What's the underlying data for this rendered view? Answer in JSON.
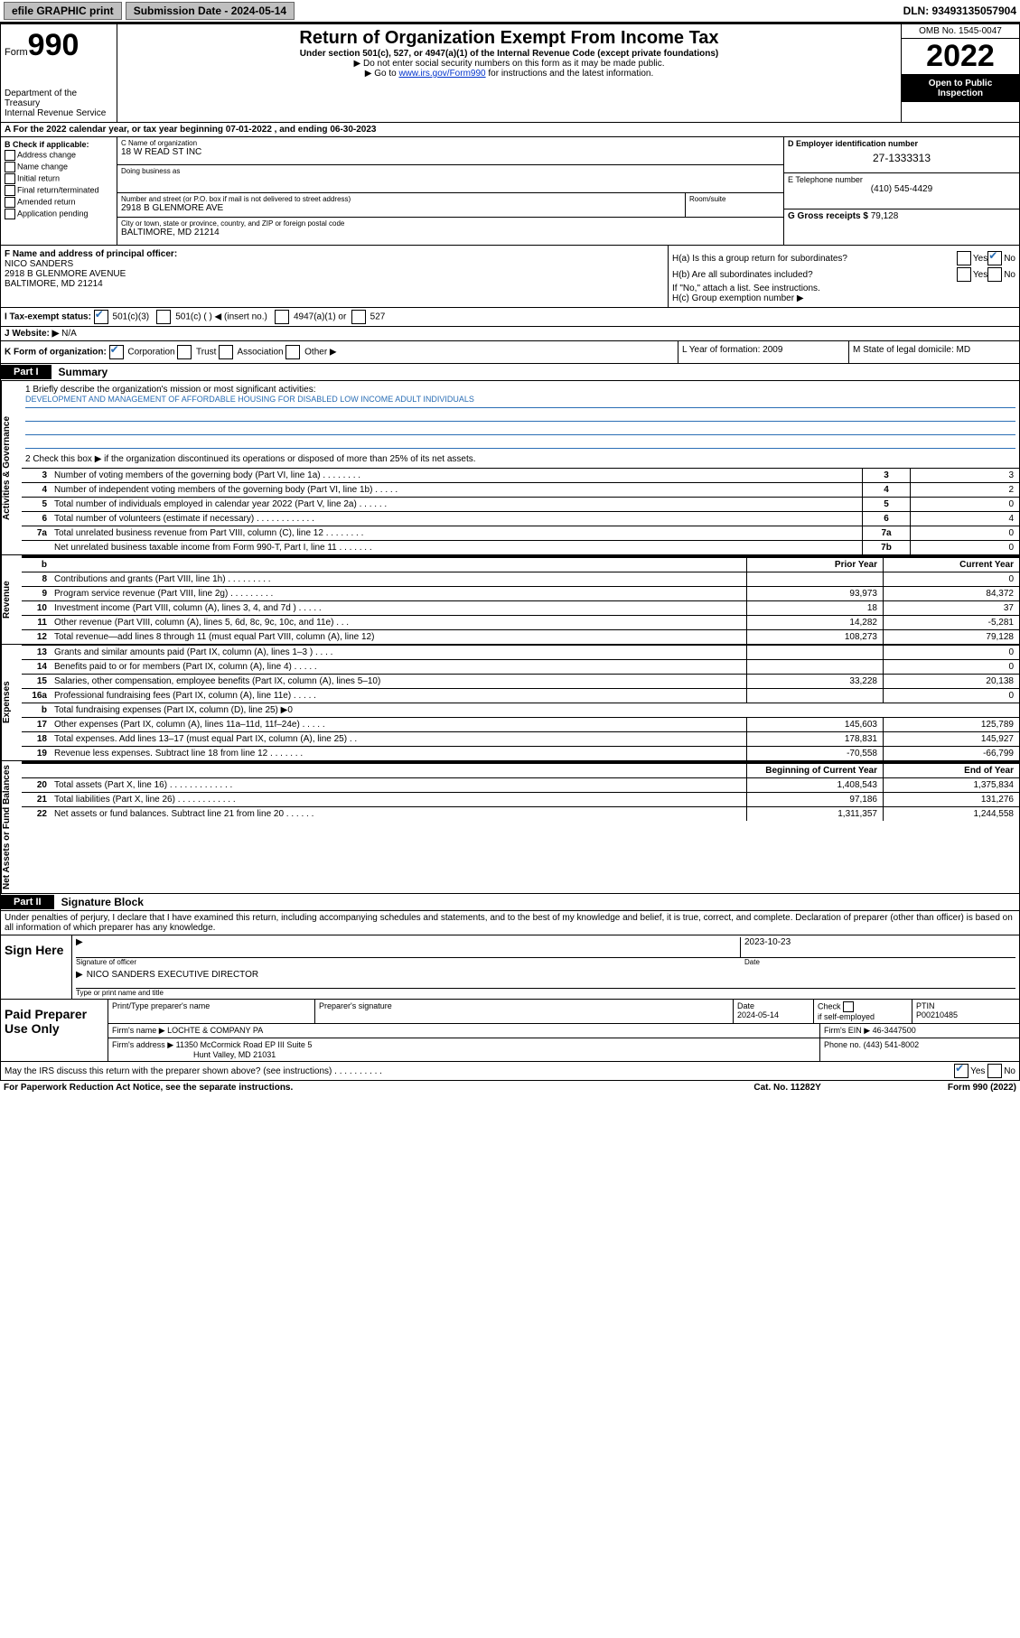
{
  "topbar": {
    "efile": "efile GRAPHIC print",
    "sub_label": "Submission Date - 2024-05-14",
    "dln": "DLN: 93493135057904"
  },
  "header": {
    "form_word": "Form",
    "form_num": "990",
    "dept": "Department of the Treasury",
    "irs": "Internal Revenue Service",
    "title": "Return of Organization Exempt From Income Tax",
    "subtitle": "Under section 501(c), 527, or 4947(a)(1) of the Internal Revenue Code (except private foundations)",
    "line1": "▶ Do not enter social security numbers on this form as it may be made public.",
    "line2a": "▶ Go to ",
    "line2_link": "www.irs.gov/Form990",
    "line2b": " for instructions and the latest information.",
    "omb": "OMB No. 1545-0047",
    "year": "2022",
    "inspect": "Open to Public Inspection"
  },
  "rowA": "A For the 2022 calendar year, or tax year beginning 07-01-2022   , and ending 06-30-2023",
  "colB": {
    "hdr": "B Check if applicable:",
    "opts": [
      "Address change",
      "Name change",
      "Initial return",
      "Final return/terminated",
      "Amended return",
      "Application pending"
    ]
  },
  "colC": {
    "name_lbl": "C Name of organization",
    "name": "18 W READ ST INC",
    "dba_lbl": "Doing business as",
    "street_lbl": "Number and street (or P.O. box if mail is not delivered to street address)",
    "room_lbl": "Room/suite",
    "street": "2918 B GLENMORE AVE",
    "city_lbl": "City or town, state or province, country, and ZIP or foreign postal code",
    "city": "BALTIMORE, MD  21214"
  },
  "colD": {
    "ein_lbl": "D Employer identification number",
    "ein": "27-1333313",
    "tel_lbl": "E Telephone number",
    "tel": "(410) 545-4429",
    "gross_lbl": "G Gross receipts $ ",
    "gross": "79,128"
  },
  "F": {
    "lbl": "F Name and address of principal officer:",
    "name": "NICO SANDERS",
    "addr1": "2918 B GLENMORE AVENUE",
    "addr2": "BALTIMORE, MD  21214"
  },
  "H": {
    "a": "H(a)  Is this a group return for subordinates?",
    "b": "H(b)  Are all subordinates included?",
    "attach": "If \"No,\" attach a list. See instructions.",
    "c": "H(c)  Group exemption number ▶",
    "yes": "Yes",
    "no": "No"
  },
  "I": {
    "lbl": "I   Tax-exempt status:",
    "c3": "501(c)(3)",
    "cx": "501(c) (   ) ◀ (insert no.)",
    "a1": "4947(a)(1) or",
    "s527": "527"
  },
  "J": {
    "lbl": "J   Website: ▶",
    "val": "N/A"
  },
  "K": {
    "lbl": "K Form of organization:",
    "corp": "Corporation",
    "trust": "Trust",
    "assoc": "Association",
    "other": "Other ▶",
    "L": "L Year of formation: 2009",
    "M": "M State of legal domicile: MD"
  },
  "part1": {
    "tag": "Part I",
    "title": "Summary"
  },
  "mission": {
    "q1": "1  Briefly describe the organization's mission or most significant activities:",
    "txt": "DEVELOPMENT AND MANAGEMENT OF AFFORDABLE HOUSING FOR DISABLED LOW INCOME ADULT INDIVIDUALS",
    "q2": "2   Check this box ▶        if the organization discontinued its operations or disposed of more than 25% of its net assets."
  },
  "gov_lines": [
    {
      "n": "3",
      "d": "Number of voting members of the governing body (Part VI, line 1a)   .    .    .    .    .    .    .    .",
      "b": "3",
      "v": "3"
    },
    {
      "n": "4",
      "d": "Number of independent voting members of the governing body (Part VI, line 1b)   .    .    .    .    .",
      "b": "4",
      "v": "2"
    },
    {
      "n": "5",
      "d": "Total number of individuals employed in calendar year 2022 (Part V, line 2a)   .    .    .    .    .    .",
      "b": "5",
      "v": "0"
    },
    {
      "n": "6",
      "d": "Total number of volunteers (estimate if necessary)   .    .    .    .    .    .    .    .    .    .    .    .",
      "b": "6",
      "v": "4"
    },
    {
      "n": "7a",
      "d": "Total unrelated business revenue from Part VIII, column (C), line 12   .    .    .    .    .    .    .    .",
      "b": "7a",
      "v": "0"
    },
    {
      "n": "",
      "d": "Net unrelated business taxable income from Form 990-T, Part I, line 11   .    .    .    .    .    .    .",
      "b": "7b",
      "v": "0"
    }
  ],
  "rev_head": {
    "n": "b",
    "py": "Prior Year",
    "cy": "Current Year"
  },
  "rev_lines": [
    {
      "n": "8",
      "d": "Contributions and grants (Part VIII, line 1h)   .    .    .    .    .    .    .    .    .",
      "p": "",
      "c": "0"
    },
    {
      "n": "9",
      "d": "Program service revenue (Part VIII, line 2g)   .    .    .    .    .    .    .    .    .",
      "p": "93,973",
      "c": "84,372"
    },
    {
      "n": "10",
      "d": "Investment income (Part VIII, column (A), lines 3, 4, and 7d )   .    .    .    .    .",
      "p": "18",
      "c": "37"
    },
    {
      "n": "11",
      "d": "Other revenue (Part VIII, column (A), lines 5, 6d, 8c, 9c, 10c, and 11e)   .    .    .",
      "p": "14,282",
      "c": "-5,281"
    },
    {
      "n": "12",
      "d": "Total revenue—add lines 8 through 11 (must equal Part VIII, column (A), line 12)",
      "p": "108,273",
      "c": "79,128"
    }
  ],
  "exp_lines": [
    {
      "n": "13",
      "d": "Grants and similar amounts paid (Part IX, column (A), lines 1–3 )   .    .    .    .",
      "p": "",
      "c": "0"
    },
    {
      "n": "14",
      "d": "Benefits paid to or for members (Part IX, column (A), line 4)   .    .    .    .    .",
      "p": "",
      "c": "0"
    },
    {
      "n": "15",
      "d": "Salaries, other compensation, employee benefits (Part IX, column (A), lines 5–10)",
      "p": "33,228",
      "c": "20,138"
    },
    {
      "n": "16a",
      "d": "Professional fundraising fees (Part IX, column (A), line 11e)   .    .    .    .    .",
      "p": "",
      "c": "0"
    },
    {
      "n": "b",
      "d": "Total fundraising expenses (Part IX, column (D), line 25) ▶0",
      "p": "§",
      "c": "§"
    },
    {
      "n": "17",
      "d": "Other expenses (Part IX, column (A), lines 11a–11d, 11f–24e)   .    .    .    .    .",
      "p": "145,603",
      "c": "125,789"
    },
    {
      "n": "18",
      "d": "Total expenses. Add lines 13–17 (must equal Part IX, column (A), line 25)   .    .",
      "p": "178,831",
      "c": "145,927"
    },
    {
      "n": "19",
      "d": "Revenue less expenses. Subtract line 18 from line 12   .    .    .    .    .    .    .",
      "p": "-70,558",
      "c": "-66,799"
    }
  ],
  "na_head": {
    "py": "Beginning of Current Year",
    "cy": "End of Year"
  },
  "na_lines": [
    {
      "n": "20",
      "d": "Total assets (Part X, line 16)   .    .    .    .    .    .    .    .    .    .    .    .    .",
      "p": "1,408,543",
      "c": "1,375,834"
    },
    {
      "n": "21",
      "d": "Total liabilities (Part X, line 26)   .    .    .    .    .    .    .    .    .    .    .    .",
      "p": "97,186",
      "c": "131,276"
    },
    {
      "n": "22",
      "d": "Net assets or fund balances. Subtract line 21 from line 20   .    .    .    .    .    .",
      "p": "1,311,357",
      "c": "1,244,558"
    }
  ],
  "side_labels": {
    "gov": "Activities & Governance",
    "rev": "Revenue",
    "exp": "Expenses",
    "na": "Net Assets or Fund Balances"
  },
  "part2": {
    "tag": "Part II",
    "title": "Signature Block"
  },
  "sig": {
    "penalty": "Under penalties of perjury, I declare that I have examined this return, including accompanying schedules and statements, and to the best of my knowledge and belief, it is true, correct, and complete. Declaration of preparer (other than officer) is based on all information of which preparer has any knowledge.",
    "sign_here": "Sign Here",
    "sig_officer": "Signature of officer",
    "date_lbl": "Date",
    "date": "2023-10-23",
    "name": "NICO SANDERS  EXECUTIVE DIRECTOR",
    "name_lbl": "Type or print name and title"
  },
  "prep": {
    "hdr": "Paid Preparer Use Only",
    "c1": "Print/Type preparer's name",
    "c2": "Preparer's signature",
    "c3": "Date",
    "c3v": "2024-05-14",
    "c4a": "Check",
    "c4b": "if self-employed",
    "c5": "PTIN",
    "c5v": "P00210485",
    "firm_lbl": "Firm's name    ▶",
    "firm": "LOCHTE & COMPANY PA",
    "ein_lbl": "Firm's EIN ▶",
    "ein": "46-3447500",
    "addr_lbl": "Firm's address ▶",
    "addr1": "11350 McCormick Road EP III Suite 5",
    "addr2": "Hunt Valley, MD  21031",
    "phone_lbl": "Phone no.",
    "phone": "(443) 541-8002"
  },
  "discuss": {
    "q": "May the IRS discuss this return with the preparer shown above? (see instructions)   .    .    .    .    .    .    .    .    .    .",
    "yes": "Yes",
    "no": "No"
  },
  "footer": {
    "left": "For Paperwork Reduction Act Notice, see the separate instructions.",
    "mid": "Cat. No. 11282Y",
    "right": "Form 990 (2022)"
  }
}
